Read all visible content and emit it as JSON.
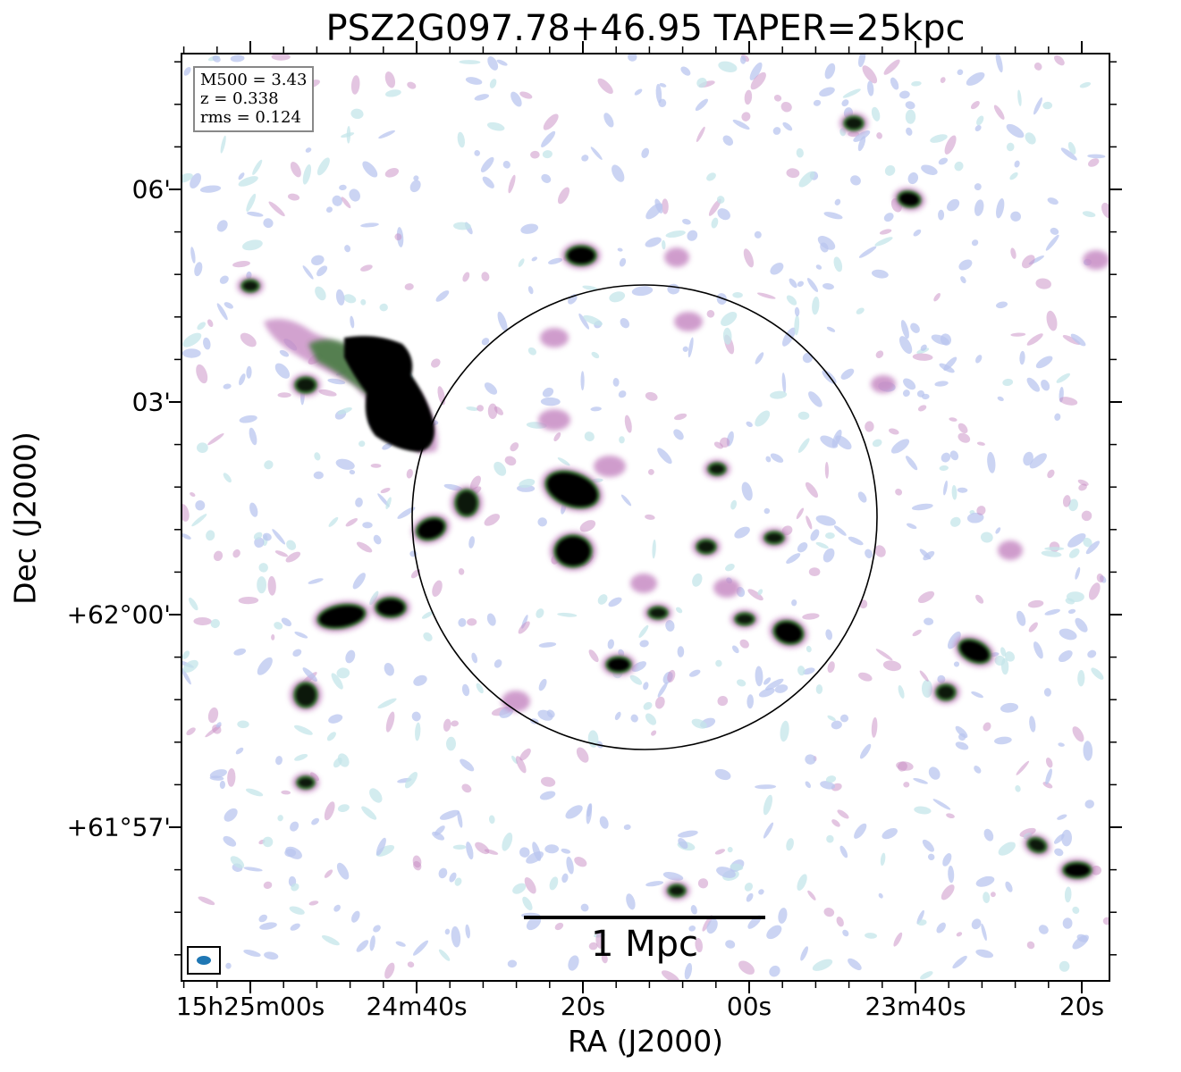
{
  "title": "PSZ2G097.78+46.95 TAPER=25kpc",
  "axes": {
    "xlabel": "RA (J2000)",
    "ylabel": "Dec (J2000)",
    "xticks": [
      "15h25m00s",
      "24m40s",
      "20s",
      "00s",
      "23m40s",
      "20s"
    ],
    "yticks": [
      "06'",
      "03'",
      "+62°00'",
      "+61°57'"
    ]
  },
  "info_box": {
    "line1": "M500 = 3.43",
    "line2": "z = 0.338",
    "line3": "rms = 0.124"
  },
  "scale_bar": {
    "label": "1 Mpc"
  },
  "colors": {
    "frame": "#000000",
    "source_core": "#000000",
    "source_green": "#3f7a3a",
    "source_magenta": "#c78bc4",
    "noise_blue": "#b9c6ef",
    "noise_cyan": "#c4e6ea",
    "beam": "#1f77b4",
    "circle": "#000000"
  },
  "image_content": {
    "type": "radio-continuum map (inverted cubehelix colour scale)",
    "region_circle": "R500 circle around cluster centre",
    "beam_marker": "bottom-left"
  }
}
